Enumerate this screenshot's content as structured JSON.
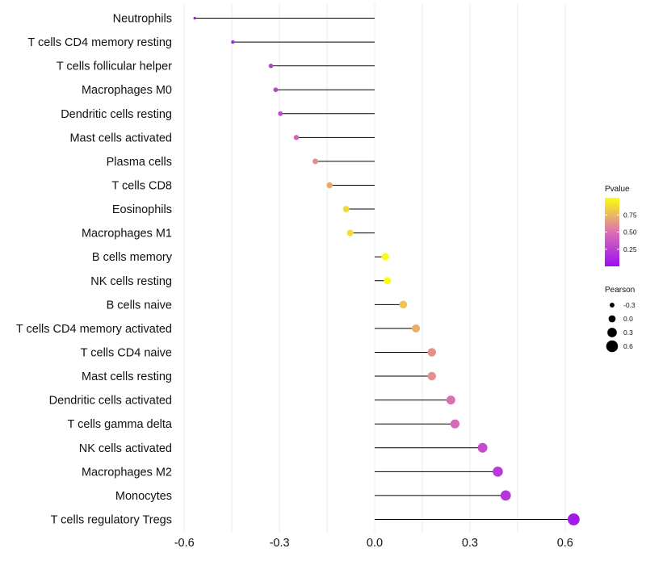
{
  "chart_data": {
    "type": "lollipop",
    "orientation": "horizontal",
    "categories": [
      "Neutrophils",
      "T cells CD4 memory resting",
      "T cells follicular helper",
      "Macrophages M0",
      "Dendritic cells resting",
      "Mast cells activated",
      "Plasma cells",
      "T cells CD8",
      "Eosinophils",
      "Macrophages M1",
      "B cells memory",
      "NK cells resting",
      "B cells naive",
      "T cells CD4 memory activated",
      "T cells CD4 naive",
      "Mast cells resting",
      "Dendritic cells activated",
      "T cells gamma delta",
      "NK cells activated",
      "Macrophages M2",
      "Monocytes",
      "T cells regulatory  Tregs"
    ],
    "pearson": [
      -0.567,
      -0.447,
      -0.327,
      -0.312,
      -0.297,
      -0.247,
      -0.187,
      -0.142,
      -0.09,
      -0.077,
      0.033,
      0.04,
      0.09,
      0.13,
      0.18,
      0.18,
      0.24,
      0.253,
      0.34,
      0.388,
      0.413,
      0.627
    ],
    "pvalue": [
      0.02,
      0.12,
      0.25,
      0.27,
      0.3,
      0.42,
      0.6,
      0.7,
      0.86,
      0.88,
      0.99,
      0.99,
      0.8,
      0.72,
      0.62,
      0.62,
      0.5,
      0.46,
      0.32,
      0.22,
      0.2,
      0.05
    ],
    "x_ticks": [
      "-0.6",
      "-0.3",
      "0.0",
      "0.3",
      "0.6"
    ],
    "x_tick_values": [
      -0.6,
      -0.3,
      0.0,
      0.3,
      0.6
    ],
    "xlim": [
      -0.6,
      0.65
    ],
    "baseline": 0,
    "grid": true,
    "legend_position": "right",
    "color_scale": {
      "title": "Pvalue",
      "low_color": "#9b0ff5",
      "mid_color": "#dc6fb2",
      "high_color": "#fbff10",
      "range": [
        0,
        1
      ],
      "ticks": [
        "0.75",
        "0.50",
        "0.25"
      ],
      "tick_values": [
        0.75,
        0.5,
        0.25
      ]
    },
    "size_scale": {
      "title": "Pearson",
      "labels": [
        "-0.3",
        "0.0",
        "0.3",
        "0.6"
      ],
      "values": [
        -0.3,
        0.0,
        0.3,
        0.6
      ]
    },
    "stem_color": "#000000",
    "grid_color": "#ebebeb"
  }
}
